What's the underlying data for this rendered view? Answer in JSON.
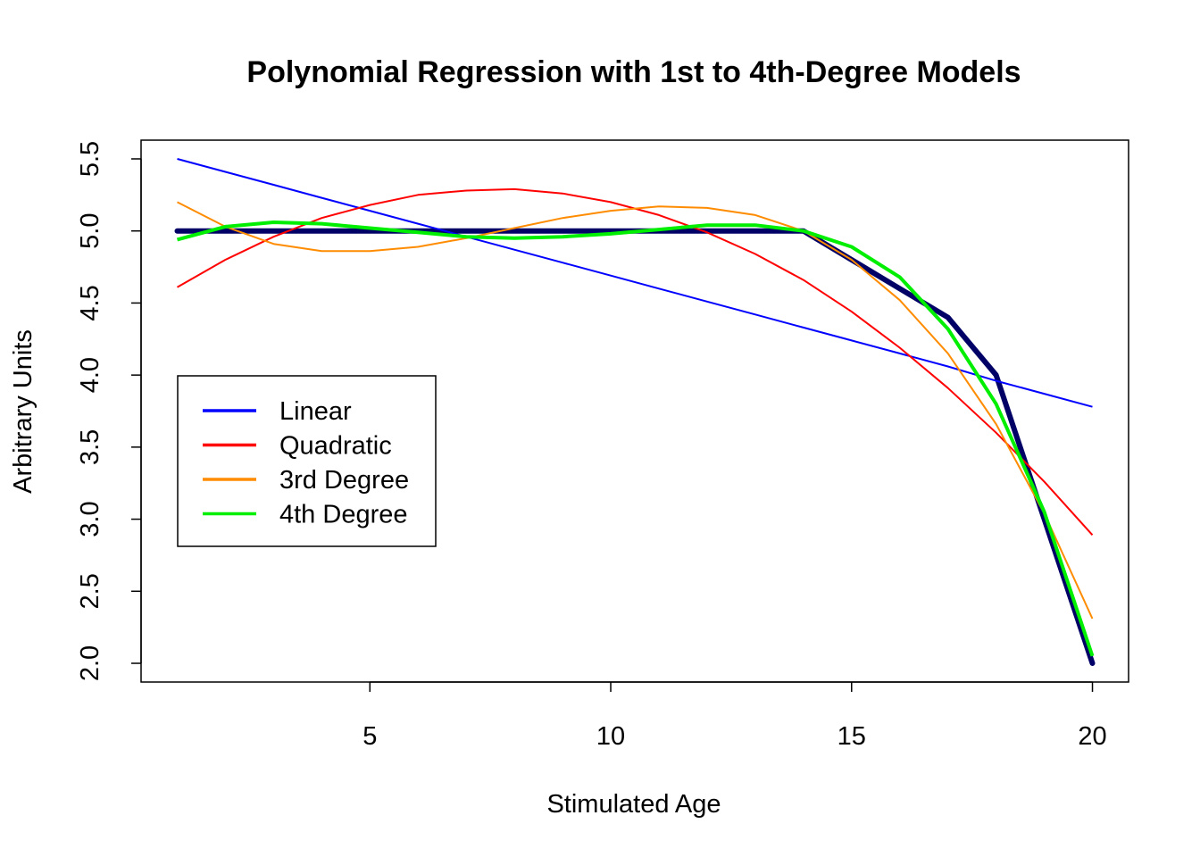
{
  "chart_data": {
    "type": "line",
    "title": "Polynomial Regression with 1st to 4th-Degree Models",
    "xlabel": "Stimulated Age",
    "ylabel": "Arbitrary Units",
    "xlim": [
      0.25,
      20.75
    ],
    "ylim": [
      1.87,
      5.63
    ],
    "xticks": [
      5,
      10,
      15,
      20
    ],
    "yticks": [
      2.0,
      2.5,
      3.0,
      3.5,
      4.0,
      4.5,
      5.0,
      5.5
    ],
    "ytick_labels": [
      "2.0",
      "2.5",
      "3.0",
      "3.5",
      "4.0",
      "4.5",
      "5.0",
      "5.5"
    ],
    "xtick_labels": [
      "5",
      "10",
      "15",
      "20"
    ],
    "grid": false,
    "legend_position": "left-middle",
    "x": [
      1,
      2,
      3,
      4,
      5,
      6,
      7,
      8,
      9,
      10,
      11,
      12,
      13,
      14,
      15,
      16,
      17,
      18,
      19,
      20
    ],
    "observed": {
      "color": "#000066",
      "values": [
        5.0,
        5.0,
        5.0,
        5.0,
        5.0,
        5.0,
        5.0,
        5.0,
        5.0,
        5.0,
        5.0,
        5.0,
        5.0,
        5.0,
        4.8,
        4.6,
        4.4,
        4.0,
        3.0,
        2.0
      ]
    },
    "series": [
      {
        "name": "Linear",
        "color": "#0000ff",
        "values": [
          5.5,
          5.41,
          5.32,
          5.23,
          5.14,
          5.05,
          4.96,
          4.87,
          4.78,
          4.69,
          4.6,
          4.51,
          4.42,
          4.33,
          4.24,
          4.15,
          4.06,
          3.96,
          3.87,
          3.78
        ]
      },
      {
        "name": "Quadratic",
        "color": "#ff0000",
        "values": [
          4.61,
          4.8,
          4.96,
          5.09,
          5.18,
          5.25,
          5.28,
          5.29,
          5.26,
          5.2,
          5.11,
          4.99,
          4.84,
          4.66,
          4.44,
          4.19,
          3.91,
          3.6,
          3.26,
          2.89
        ]
      },
      {
        "name": "3rd Degree",
        "color": "#ff8c00",
        "values": [
          5.2,
          5.03,
          4.91,
          4.86,
          4.86,
          4.89,
          4.95,
          5.02,
          5.09,
          5.14,
          5.17,
          5.16,
          5.11,
          5.0,
          4.8,
          4.52,
          4.15,
          3.66,
          3.04,
          2.31
        ]
      },
      {
        "name": "4th Degree",
        "color": "#00ee00",
        "values": [
          4.94,
          5.03,
          5.06,
          5.05,
          5.02,
          4.99,
          4.96,
          4.95,
          4.96,
          4.98,
          5.01,
          5.04,
          5.04,
          5.0,
          4.89,
          4.68,
          4.32,
          3.8,
          3.05,
          2.05
        ]
      }
    ]
  }
}
